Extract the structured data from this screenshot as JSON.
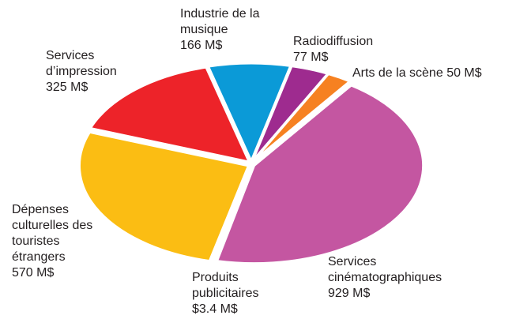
{
  "chart_data": {
    "type": "pie",
    "categories": [
      "Services cinématographiques",
      "Produits publicitaires",
      "Dépenses culturelles des touristes étrangers",
      "Services d’impression",
      "Industrie de la musique",
      "Radiodiffusion",
      "Arts de la scène"
    ],
    "values": [
      929,
      3.4,
      570,
      325,
      166,
      77,
      50
    ],
    "value_labels": [
      "929 M$",
      "$3.4 M$",
      "570 M$",
      "325 M$",
      "166 M$",
      "77 M$",
      "50 M$"
    ],
    "colors": [
      "#c456a1",
      "#17a04c",
      "#fbbd13",
      "#ed2329",
      "#0b9ad7",
      "#9e2b8f",
      "#f68121"
    ]
  }
}
